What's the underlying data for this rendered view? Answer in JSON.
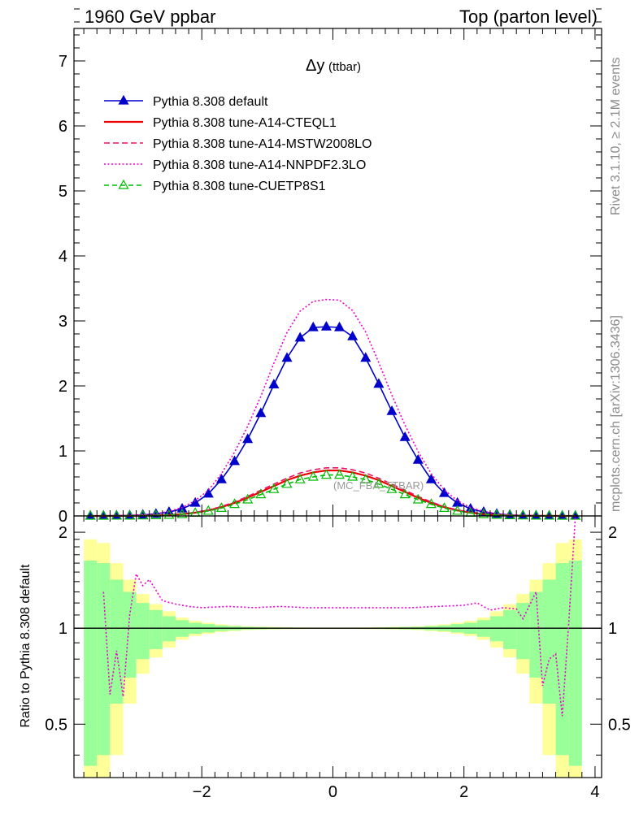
{
  "header": {
    "left": "1960 GeV ppbar",
    "right": "Top (parton level)"
  },
  "side_text": {
    "rivet": "Rivet 3.1.10, ≥ 2.1M events",
    "mcplots": "mcplots.cern.ch [arXiv:1306.3436]"
  },
  "chart_data": [
    {
      "type": "line",
      "panel": "main",
      "title": "Δy",
      "title_suffix": "(ttbar)",
      "watermark": "(MC_FBA_TTBAR)",
      "xlim": [
        -3.95,
        4.1
      ],
      "ylim": [
        0,
        7.5
      ],
      "yticks": [
        0,
        1,
        2,
        3,
        4,
        5,
        6,
        7
      ],
      "x": [
        -3.7,
        -3.5,
        -3.3,
        -3.1,
        -2.9,
        -2.7,
        -2.5,
        -2.3,
        -2.1,
        -1.9,
        -1.7,
        -1.5,
        -1.3,
        -1.1,
        -0.9,
        -0.7,
        -0.5,
        -0.3,
        -0.1,
        0.1,
        0.3,
        0.5,
        0.7,
        0.9,
        1.1,
        1.3,
        1.5,
        1.7,
        1.9,
        2.1,
        2.3,
        2.5,
        2.7,
        2.9,
        3.1,
        3.3,
        3.5,
        3.7
      ],
      "legend_position": "top-left",
      "series": [
        {
          "name": "Pythia 8.308 default",
          "color": "#0000cc",
          "style": "solid-triangle-filled",
          "values": [
            0.001,
            0.002,
            0.004,
            0.008,
            0.016,
            0.03,
            0.06,
            0.11,
            0.2,
            0.34,
            0.56,
            0.84,
            1.18,
            1.58,
            2.02,
            2.43,
            2.74,
            2.9,
            2.91,
            2.9,
            2.76,
            2.43,
            2.03,
            1.61,
            1.21,
            0.86,
            0.56,
            0.35,
            0.2,
            0.11,
            0.06,
            0.03,
            0.015,
            0.008,
            0.004,
            0.002,
            0.001,
            0.001
          ]
        },
        {
          "name": "Pythia 8.308 tune-A14-CTEQL1",
          "color": "#ee0000",
          "style": "solid",
          "values": [
            0.0,
            0.0,
            0.001,
            0.002,
            0.004,
            0.008,
            0.015,
            0.028,
            0.05,
            0.085,
            0.135,
            0.2,
            0.28,
            0.37,
            0.46,
            0.55,
            0.62,
            0.67,
            0.7,
            0.7,
            0.67,
            0.62,
            0.55,
            0.46,
            0.37,
            0.28,
            0.2,
            0.135,
            0.085,
            0.05,
            0.028,
            0.015,
            0.008,
            0.004,
            0.002,
            0.001,
            0.0,
            0.0
          ]
        },
        {
          "name": "Pythia 8.308 tune-A14-MSTW2008LO",
          "color": "#ee1166",
          "style": "dashed",
          "values": [
            0.0,
            0.0,
            0.001,
            0.002,
            0.004,
            0.009,
            0.017,
            0.031,
            0.055,
            0.092,
            0.145,
            0.215,
            0.3,
            0.395,
            0.49,
            0.58,
            0.66,
            0.71,
            0.74,
            0.74,
            0.71,
            0.66,
            0.58,
            0.49,
            0.395,
            0.3,
            0.215,
            0.145,
            0.092,
            0.055,
            0.031,
            0.017,
            0.009,
            0.004,
            0.002,
            0.001,
            0.0,
            0.0
          ]
        },
        {
          "name": "Pythia 8.308 tune-A14-NNPDF2.3LO",
          "color": "#ee00cc",
          "style": "dotted",
          "values": [
            0.001,
            0.002,
            0.005,
            0.01,
            0.018,
            0.035,
            0.07,
            0.13,
            0.235,
            0.395,
            0.65,
            0.98,
            1.38,
            1.84,
            2.35,
            2.82,
            3.15,
            3.3,
            3.33,
            3.32,
            3.16,
            2.83,
            2.36,
            1.86,
            1.4,
            0.99,
            0.65,
            0.4,
            0.235,
            0.13,
            0.07,
            0.035,
            0.018,
            0.01,
            0.005,
            0.002,
            0.001,
            0.001
          ]
        },
        {
          "name": "Pythia 8.308 tune-CUETP8S1",
          "color": "#00bb00",
          "style": "dashed-triangle-open",
          "values": [
            0.0,
            0.0,
            0.001,
            0.002,
            0.004,
            0.008,
            0.014,
            0.025,
            0.045,
            0.076,
            0.12,
            0.18,
            0.25,
            0.33,
            0.41,
            0.49,
            0.56,
            0.6,
            0.63,
            0.63,
            0.6,
            0.56,
            0.49,
            0.41,
            0.33,
            0.25,
            0.18,
            0.12,
            0.076,
            0.045,
            0.025,
            0.014,
            0.008,
            0.004,
            0.002,
            0.001,
            0.0,
            0.0
          ]
        }
      ]
    },
    {
      "type": "line",
      "panel": "ratio",
      "ylabel": "Ratio to Pythia 8.308 default",
      "xlim": [
        -3.95,
        4.1
      ],
      "ylim": [
        0.34,
        2.25
      ],
      "xticks": [
        -2,
        0,
        2,
        4
      ],
      "yticks": [
        0.5,
        1,
        2
      ],
      "reference": 1,
      "band_edges": [
        -3.8,
        -3.6,
        -3.4,
        -3.2,
        -3.0,
        -2.8,
        -2.6,
        -2.4,
        -2.2,
        -2.0,
        -1.8,
        -1.6,
        -1.4,
        -1.2,
        -1.0,
        -0.8,
        -0.6,
        -0.4,
        -0.2,
        0.0,
        0.2,
        0.4,
        0.6,
        0.8,
        1.0,
        1.2,
        1.4,
        1.6,
        1.8,
        2.0,
        2.2,
        2.4,
        2.6,
        2.8,
        3.0,
        3.2,
        3.4,
        3.6,
        3.8
      ],
      "band_inner": [
        0.63,
        0.6,
        0.42,
        0.3,
        0.2,
        0.14,
        0.09,
        0.06,
        0.04,
        0.03,
        0.02,
        0.015,
        0.01,
        0.008,
        0.006,
        0.005,
        0.004,
        0.004,
        0.003,
        0.003,
        0.004,
        0.004,
        0.005,
        0.006,
        0.008,
        0.01,
        0.015,
        0.02,
        0.03,
        0.04,
        0.06,
        0.09,
        0.14,
        0.2,
        0.3,
        0.42,
        0.6,
        0.63
      ],
      "band_outer": [
        0.9,
        0.85,
        0.6,
        0.42,
        0.28,
        0.19,
        0.13,
        0.08,
        0.055,
        0.04,
        0.028,
        0.02,
        0.014,
        0.011,
        0.009,
        0.007,
        0.006,
        0.005,
        0.005,
        0.005,
        0.005,
        0.006,
        0.007,
        0.009,
        0.011,
        0.014,
        0.02,
        0.028,
        0.04,
        0.055,
        0.08,
        0.13,
        0.19,
        0.28,
        0.42,
        0.6,
        0.85,
        0.9
      ],
      "band_colors": {
        "inner": "#99ff99",
        "outer": "#ffff99"
      },
      "series": [
        {
          "name": "Pythia 8.308 tune-A14-NNPDF2.3LO",
          "color": "#ee00cc",
          "style": "dotted",
          "x": [
            -3.5,
            -3.4,
            -3.3,
            -3.2,
            -3.1,
            -3.0,
            -2.9,
            -2.8,
            -2.6,
            -2.4,
            -2.2,
            -2.0,
            -1.6,
            -1.2,
            -0.8,
            -0.4,
            0.0,
            0.4,
            0.8,
            1.2,
            1.6,
            2.0,
            2.2,
            2.4,
            2.6,
            2.8,
            2.9,
            3.0,
            3.1,
            3.2,
            3.3,
            3.4,
            3.5,
            3.6,
            3.7
          ],
          "values": [
            1.3,
            0.62,
            0.85,
            0.61,
            1.1,
            1.48,
            1.36,
            1.42,
            1.22,
            1.19,
            1.17,
            1.16,
            1.17,
            1.16,
            1.17,
            1.16,
            1.16,
            1.16,
            1.16,
            1.16,
            1.17,
            1.18,
            1.2,
            1.14,
            1.16,
            1.15,
            1.07,
            1.18,
            1.3,
            0.66,
            0.8,
            0.83,
            0.53,
            1.05,
            2.28
          ]
        }
      ]
    }
  ]
}
